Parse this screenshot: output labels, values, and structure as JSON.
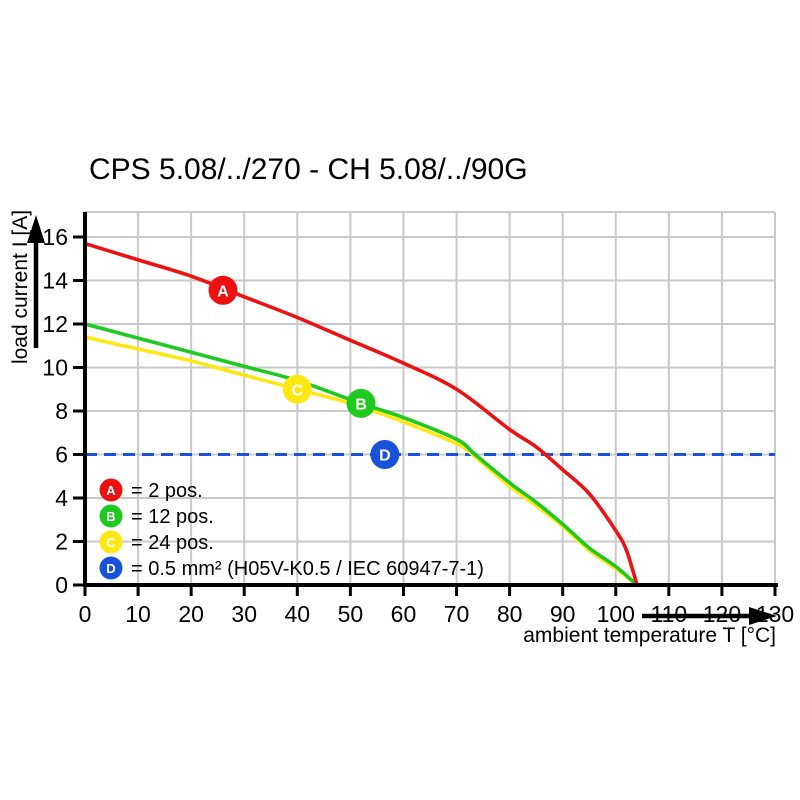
{
  "chart_data": {
    "type": "line",
    "title": "CPS 5.08/../270 - CH 5.08/../90G",
    "xlabel": "ambient temperature T [°C]",
    "ylabel": "load current I [A]",
    "xlim": [
      0,
      130
    ],
    "ylim": [
      0,
      17.15
    ],
    "x_ticks": [
      0,
      10,
      20,
      30,
      40,
      50,
      60,
      70,
      80,
      90,
      100,
      110,
      120,
      130
    ],
    "y_ticks": [
      0,
      2,
      4,
      6,
      8,
      10,
      12,
      14,
      16
    ],
    "grid": true,
    "grid_color": "#c9c9c9",
    "axis_color": "#000000",
    "legend_position": "inside-bottom-left",
    "series": [
      {
        "letter": "A",
        "label": "= 2 pos.",
        "color": "#ee1111",
        "style": "solid",
        "marker_at": {
          "x": 26,
          "y": 13.55
        },
        "points": [
          [
            0,
            15.7
          ],
          [
            10,
            14.95
          ],
          [
            20,
            14.2
          ],
          [
            30,
            13.25
          ],
          [
            40,
            12.3
          ],
          [
            50,
            11.25
          ],
          [
            60,
            10.2
          ],
          [
            70,
            9.0
          ],
          [
            80,
            7.15
          ],
          [
            85,
            6.35
          ],
          [
            90,
            5.3
          ],
          [
            95,
            4.2
          ],
          [
            100,
            2.5
          ],
          [
            102,
            1.6
          ],
          [
            104,
            0
          ]
        ]
      },
      {
        "letter": "B",
        "label": "= 12 pos.",
        "color": "#1fc91f",
        "style": "solid",
        "marker_at": {
          "x": 52,
          "y": 8.35
        },
        "points": [
          [
            0,
            12.0
          ],
          [
            10,
            11.35
          ],
          [
            20,
            10.7
          ],
          [
            30,
            10.05
          ],
          [
            40,
            9.4
          ],
          [
            52,
            8.35
          ],
          [
            60,
            7.7
          ],
          [
            70,
            6.7
          ],
          [
            73.5,
            6.0
          ],
          [
            80,
            4.7
          ],
          [
            85,
            3.8
          ],
          [
            90,
            2.8
          ],
          [
            95,
            1.7
          ],
          [
            100,
            0.85
          ],
          [
            104,
            0
          ]
        ]
      },
      {
        "letter": "C",
        "label": "= 24 pos.",
        "color": "#ffe714",
        "style": "solid",
        "marker_at": {
          "x": 40,
          "y": 9.0
        },
        "points": [
          [
            0,
            11.4
          ],
          [
            10,
            10.85
          ],
          [
            20,
            10.3
          ],
          [
            30,
            9.65
          ],
          [
            40,
            9.0
          ],
          [
            50,
            8.35
          ],
          [
            60,
            7.5
          ],
          [
            70,
            6.5
          ],
          [
            73,
            6.0
          ],
          [
            80,
            4.55
          ],
          [
            85,
            3.65
          ],
          [
            90,
            2.7
          ],
          [
            95,
            1.6
          ],
          [
            100,
            0.75
          ],
          [
            104,
            0
          ]
        ]
      },
      {
        "letter": "D",
        "label": "= 0.5 mm² (H05V-K0.5 / IEC 60947-7-1)",
        "color": "#1852d9",
        "style": "dashed",
        "marker_at": {
          "x": 56.5,
          "y": 6
        },
        "points": [
          [
            0,
            6
          ],
          [
            130,
            6
          ]
        ]
      }
    ]
  }
}
